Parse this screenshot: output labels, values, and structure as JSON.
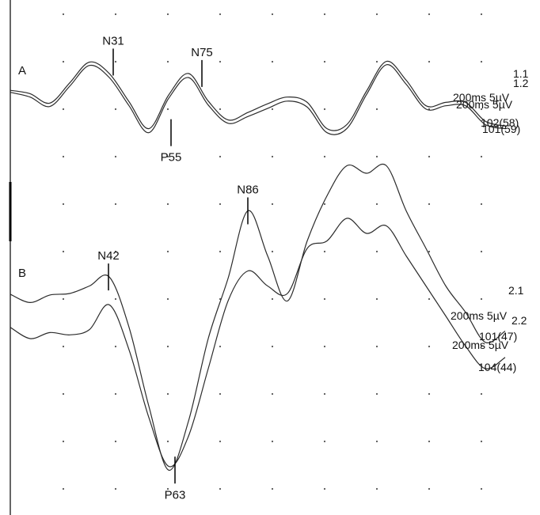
{
  "chart_data": {
    "type": "line",
    "grid": true,
    "panels": [
      {
        "id": "A",
        "label": "A",
        "series": [
          {
            "name": "1.1",
            "x": [
              0,
              25,
              50,
              75,
              100,
              125,
              150,
              175,
              200,
              225,
              250,
              275,
              300,
              325,
              350,
              375,
              400,
              425,
              450,
              475,
              500,
              525,
              550,
              575,
              600,
              625
            ],
            "y": [
              2.1,
              1.6,
              0.2,
              3.2,
              6.3,
              4.6,
              0.4,
              -3.6,
              1.4,
              4.6,
              0.5,
              -2.3,
              -1.2,
              0.1,
              1.1,
              0.3,
              -3.6,
              -3.0,
              2.0,
              6.4,
              3.6,
              -0.2,
              0.3,
              0.3,
              -2.5,
              -3.2
            ]
          },
          {
            "name": "1.2",
            "x": [
              0,
              25,
              50,
              75,
              100,
              125,
              150,
              175,
              200,
              225,
              250,
              275,
              300,
              325,
              350,
              375,
              400,
              425,
              450,
              475,
              500,
              525,
              550,
              575,
              600,
              625
            ],
            "y": [
              1.8,
              1.1,
              -0.3,
              2.7,
              5.8,
              4.0,
              -0.2,
              -4.2,
              0.9,
              4.0,
              -0.1,
              -2.8,
              -1.8,
              -0.6,
              0.5,
              -0.4,
              -4.2,
              -3.6,
              1.5,
              5.9,
              3.0,
              -0.7,
              -0.2,
              -0.2,
              -3.0,
              -3.6
            ]
          }
        ],
        "peaks": [
          {
            "label": "N31",
            "x": 130,
            "y": 6.3
          },
          {
            "label": "P55",
            "x": 203,
            "y": -4.2
          },
          {
            "label": "N75",
            "x": 242,
            "y": 4.6
          }
        ],
        "right_labels": [
          {
            "id": "1-1",
            "text": "1.1"
          },
          {
            "id": "1-2",
            "text": "1.2"
          },
          {
            "id": "scale-1",
            "text": "200ms 5µV"
          },
          {
            "id": "scale-2",
            "text": "200ms 5µV"
          },
          {
            "id": "count-1",
            "text": "102(58)"
          },
          {
            "id": "count-2",
            "text": "101(59)"
          }
        ]
      },
      {
        "id": "B",
        "label": "B",
        "series": [
          {
            "name": "2.1",
            "x": [
              0,
              25,
              50,
              75,
              100,
              125,
              150,
              175,
              200,
              225,
              250,
              275,
              300,
              325,
              350,
              375,
              400,
              425,
              450,
              475,
              500,
              525,
              550,
              575,
              600,
              625
            ],
            "y": [
              1.9,
              0.8,
              1.8,
              2.0,
              3.0,
              4.2,
              -2.5,
              -13.0,
              -21.5,
              -15.0,
              -4.0,
              4.0,
              13.0,
              7.0,
              1.0,
              9.0,
              15.0,
              19.0,
              18.0,
              19.0,
              13.0,
              8.0,
              3.0,
              -0.5,
              -4.5,
              -3.0
            ]
          },
          {
            "name": "2.2",
            "x": [
              0,
              25,
              50,
              75,
              100,
              125,
              150,
              175,
              200,
              225,
              250,
              275,
              300,
              325,
              350,
              375,
              400,
              425,
              450,
              475,
              500,
              525,
              550,
              575,
              600,
              625
            ],
            "y": [
              -2.5,
              -4.0,
              -3.2,
              -3.5,
              -2.8,
              0.5,
              -5.5,
              -14.5,
              -21.0,
              -17.0,
              -8.0,
              1.0,
              5.0,
              3.0,
              2.0,
              8.0,
              9.0,
              12.0,
              10.0,
              11.0,
              7.0,
              3.0,
              -1.0,
              -5.0,
              -8.0,
              -6.5
            ]
          }
        ],
        "peaks": [
          {
            "label": "N42",
            "x": 124,
            "y": 4.2
          },
          {
            "label": "P63",
            "x": 208,
            "y": -21.5
          },
          {
            "label": "N86",
            "x": 300,
            "y": 13.0
          }
        ],
        "right_labels": [
          {
            "id": "2-1",
            "text": "2.1"
          },
          {
            "id": "2-2",
            "text": "2.2"
          },
          {
            "id": "scale-1",
            "text": "200ms 5µV"
          },
          {
            "id": "scale-2",
            "text": "200ms 5µV"
          },
          {
            "id": "count-1",
            "text": "101(47)"
          },
          {
            "id": "count-2",
            "text": "104(44)"
          }
        ]
      }
    ]
  },
  "colors": {
    "trace": "#2b2b2b",
    "grid_dot": "#555555",
    "axis": "#000000"
  }
}
